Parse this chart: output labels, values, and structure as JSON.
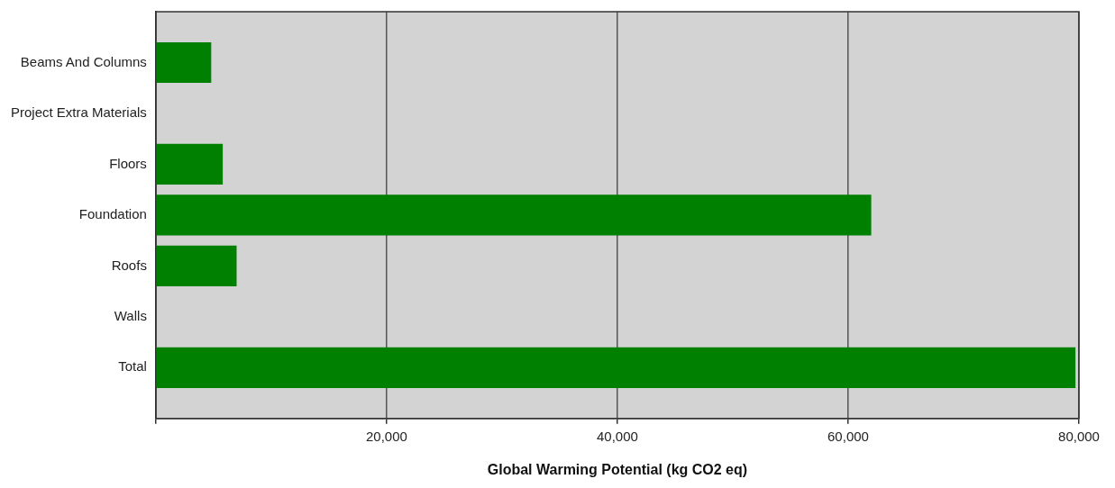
{
  "chart_data": {
    "type": "bar",
    "orientation": "horizontal",
    "xlabel": "Global Warming Potential (kg CO2 eq)",
    "categories": [
      null,
      "Beams And Columns",
      "Project Extra Materials",
      "Floors",
      "Foundation",
      "Roofs",
      "Walls",
      "Total",
      null
    ],
    "values": [
      null,
      4800,
      0,
      5800,
      62000,
      7000,
      0,
      79700,
      null
    ],
    "color": "#008000",
    "xlim": [
      0,
      80000
    ],
    "xticks": [
      {
        "value": 0,
        "label": null
      },
      {
        "value": 20000,
        "label": "20,000"
      },
      {
        "value": 40000,
        "label": "40,000"
      },
      {
        "value": 60000,
        "label": "60,000"
      },
      {
        "value": 80000,
        "label": "80,000"
      }
    ],
    "grid": "x",
    "legend": false
  }
}
